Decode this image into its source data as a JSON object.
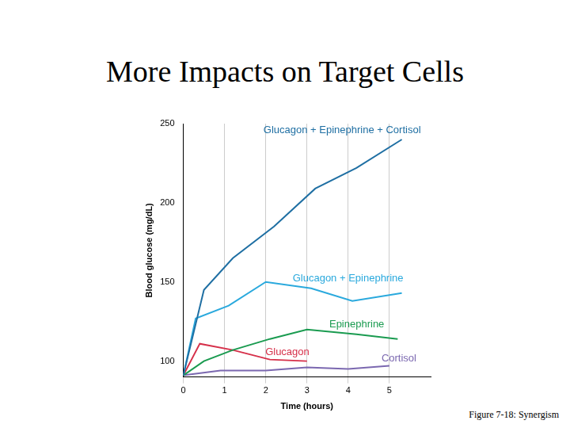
{
  "title": "More Impacts on Target Cells",
  "caption": "Figure 7-18: Synergism",
  "chart_data": {
    "type": "line",
    "x_label": "Time (hours)",
    "y_label": "Blood glucose (mg/dL)",
    "xlim": [
      0,
      6
    ],
    "xticks": [
      0,
      1,
      2,
      3,
      4,
      5
    ],
    "ylim": [
      90,
      250
    ],
    "yticks": [
      100,
      150,
      200,
      250
    ],
    "grid": "x",
    "series": [
      {
        "name": "Glucagon + Epinephrine + Cortisol",
        "color": "#1f6fa3",
        "x": [
          0,
          0.5,
          1.2,
          2.2,
          3.2,
          4.2,
          5.3
        ],
        "values": [
          91,
          145,
          165,
          185,
          209,
          222,
          240
        ]
      },
      {
        "name": "Glucagon + Epinephrine",
        "color": "#2aa9dd",
        "x": [
          0,
          0.3,
          1.1,
          2.0,
          3.1,
          4.1,
          5.3
        ],
        "values": [
          91,
          127,
          135,
          150,
          146,
          138,
          143
        ]
      },
      {
        "name": "Epinephrine",
        "color": "#1a9b50",
        "x": [
          0,
          0.5,
          1.2,
          2.1,
          3.0,
          4.2,
          5.2
        ],
        "values": [
          91,
          100,
          107,
          114,
          120,
          117,
          114
        ]
      },
      {
        "name": "Glucagon",
        "color": "#d6304a",
        "x": [
          0,
          0.4,
          1.2,
          2.1,
          3.0
        ],
        "values": [
          91,
          111,
          107,
          101,
          100
        ]
      },
      {
        "name": "Cortisol",
        "color": "#7b68b0",
        "x": [
          0,
          0.9,
          2.0,
          3.0,
          4.0,
          5.0
        ],
        "values": [
          91,
          94,
          94,
          96,
          95,
          97
        ]
      }
    ]
  }
}
